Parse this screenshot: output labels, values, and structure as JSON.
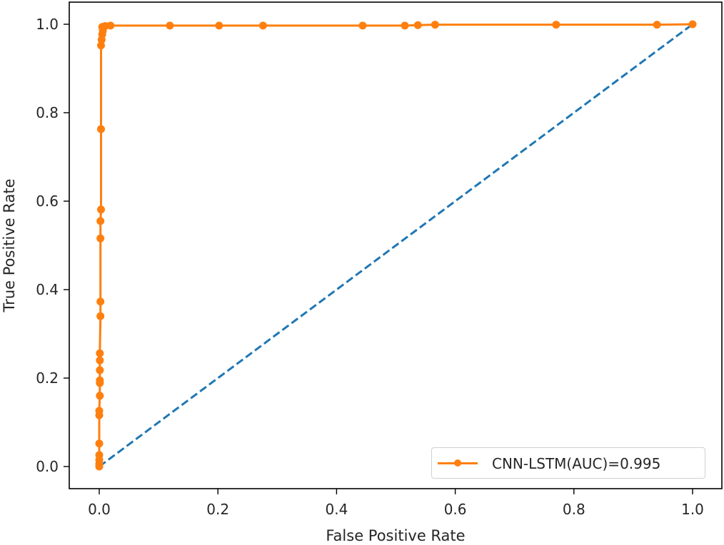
{
  "chart_data": {
    "type": "line",
    "title": "",
    "xlabel": "False Positive Rate",
    "ylabel": "True Positive Rate",
    "xlim": [
      -0.05,
      1.05
    ],
    "ylim": [
      -0.05,
      1.05
    ],
    "xticks": [
      "0.0",
      "0.2",
      "0.4",
      "0.6",
      "0.8",
      "1.0"
    ],
    "yticks": [
      "0.0",
      "0.2",
      "0.4",
      "0.6",
      "0.8",
      "1.0"
    ],
    "grid": false,
    "legend_position": "lower right",
    "series": [
      {
        "name": "CNN-LSTM(AUC)=0.995",
        "color": "#ff7f0e",
        "style": "solid",
        "marker": "circle",
        "x": [
          0.0,
          0.0,
          0.0,
          0.0,
          0.0,
          0.0,
          0.0,
          0.001,
          0.001,
          0.001,
          0.001,
          0.001,
          0.001,
          0.002,
          0.002,
          0.002,
          0.002,
          0.003,
          0.003,
          0.003,
          0.004,
          0.005,
          0.006,
          0.005,
          0.01,
          0.019,
          0.119,
          0.202,
          0.276,
          0.444,
          0.515,
          0.537,
          0.566,
          0.77,
          0.94,
          1.0
        ],
        "y": [
          0.0,
          0.006,
          0.015,
          0.026,
          0.052,
          0.116,
          0.126,
          0.16,
          0.189,
          0.195,
          0.218,
          0.24,
          0.256,
          0.34,
          0.373,
          0.516,
          0.555,
          0.581,
          0.763,
          0.952,
          0.965,
          0.977,
          0.985,
          0.994,
          0.996,
          0.997,
          0.997,
          0.997,
          0.997,
          0.997,
          0.997,
          0.998,
          0.999,
          0.999,
          0.999,
          1.0
        ]
      },
      {
        "name": "chance",
        "color": "#1f77b4",
        "style": "dashed",
        "marker": "none",
        "x": [
          0.0,
          1.0
        ],
        "y": [
          0.0,
          1.0
        ]
      }
    ],
    "auc": 0.995
  },
  "legend": {
    "label": "CNN-LSTM(AUC)=0.995",
    "color": "#ff7f0e"
  },
  "axes": {
    "xlabel": "False Positive Rate",
    "ylabel": "True Positive Rate"
  }
}
